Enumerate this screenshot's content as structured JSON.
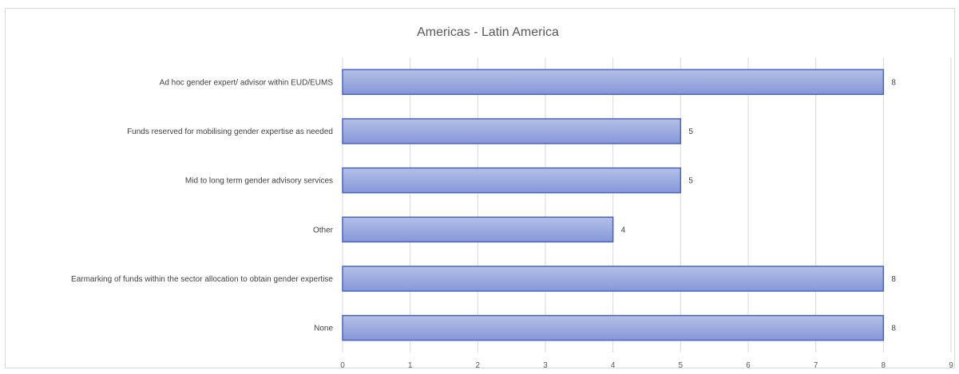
{
  "chart_data": {
    "type": "bar",
    "orientation": "horizontal",
    "title": "Americas - Latin America",
    "categories": [
      "Ad hoc gender expert/ advisor within EUD/EUMS",
      "Funds reserved for mobilising gender expertise as needed",
      "Mid to long term gender advisory services",
      "Other",
      "Earmarking  of funds within the sector allocation to obtain gender expertise",
      "None"
    ],
    "values": [
      8,
      5,
      5,
      4,
      8,
      8
    ],
    "data_labels": [
      "8",
      "5",
      "5",
      "4",
      "8",
      "8"
    ],
    "xlim": [
      0,
      9
    ],
    "ticks": [
      "0",
      "1",
      "2",
      "3",
      "4",
      "5",
      "6",
      "7",
      "8",
      "9"
    ],
    "grid": true,
    "legend": "none",
    "colors": {
      "bar_fill_top": "#b4c0e6",
      "bar_fill_bottom": "#8597d8",
      "bar_stroke": "#4a64c2",
      "grid": "#d9d9d9"
    }
  }
}
